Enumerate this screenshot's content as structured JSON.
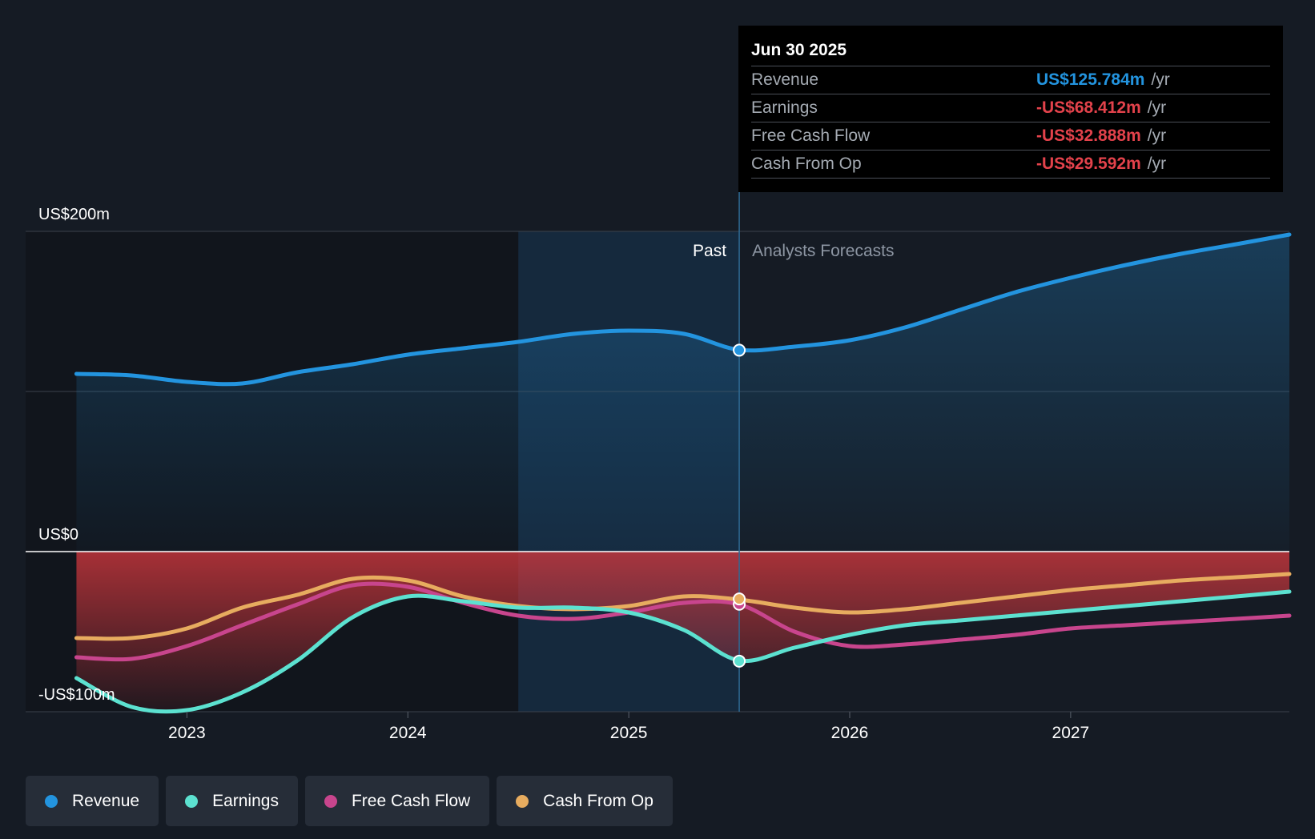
{
  "chart_data": {
    "type": "line",
    "title": "",
    "y_unit": "US$ millions",
    "ylim": [
      -100,
      200
    ],
    "y_ticks": [
      {
        "value": 200,
        "label": "US$200m"
      },
      {
        "value": 0,
        "label": "US$0"
      },
      {
        "value": -100,
        "label": "-US$100m"
      }
    ],
    "xlim": [
      2022.27,
      2027.99
    ],
    "x_ticks": [
      {
        "value": 2023,
        "label": "2023"
      },
      {
        "value": 2024,
        "label": "2024"
      },
      {
        "value": 2025,
        "label": "2025"
      },
      {
        "value": 2026,
        "label": "2026"
      },
      {
        "value": 2027,
        "label": "2027"
      }
    ],
    "past_region_start": 2024.5,
    "divider_x": 2025.5,
    "past_label": "Past",
    "forecast_label": "Analysts Forecasts",
    "series": [
      {
        "name": "Revenue",
        "color": "#2394df",
        "points": [
          [
            2022.5,
            111
          ],
          [
            2022.75,
            110
          ],
          [
            2023.0,
            106
          ],
          [
            2023.25,
            105
          ],
          [
            2023.5,
            112
          ],
          [
            2023.75,
            117
          ],
          [
            2024.0,
            123
          ],
          [
            2024.25,
            127
          ],
          [
            2024.5,
            131
          ],
          [
            2024.75,
            136
          ],
          [
            2025.0,
            138
          ],
          [
            2025.25,
            136
          ],
          [
            2025.5,
            126
          ],
          [
            2025.75,
            128
          ],
          [
            2026.0,
            132
          ],
          [
            2026.25,
            140
          ],
          [
            2026.5,
            151
          ],
          [
            2026.75,
            162
          ],
          [
            2027.0,
            171
          ],
          [
            2027.25,
            179
          ],
          [
            2027.5,
            186
          ],
          [
            2027.75,
            192
          ],
          [
            2027.99,
            198
          ]
        ],
        "marker_value": 125.784
      },
      {
        "name": "Earnings",
        "color": "#5ce1d0",
        "points": [
          [
            2022.5,
            -79
          ],
          [
            2022.75,
            -97
          ],
          [
            2023.0,
            -99
          ],
          [
            2023.25,
            -88
          ],
          [
            2023.5,
            -68
          ],
          [
            2023.75,
            -41
          ],
          [
            2024.0,
            -28
          ],
          [
            2024.25,
            -31
          ],
          [
            2024.5,
            -35
          ],
          [
            2024.75,
            -35
          ],
          [
            2025.0,
            -38
          ],
          [
            2025.25,
            -49
          ],
          [
            2025.5,
            -68
          ],
          [
            2025.75,
            -60
          ],
          [
            2026.0,
            -52
          ],
          [
            2026.25,
            -46
          ],
          [
            2026.5,
            -43
          ],
          [
            2026.75,
            -40
          ],
          [
            2027.0,
            -37
          ],
          [
            2027.25,
            -34
          ],
          [
            2027.5,
            -31
          ],
          [
            2027.75,
            -28
          ],
          [
            2027.99,
            -25
          ]
        ],
        "marker_value": -68.412
      },
      {
        "name": "Free Cash Flow",
        "color": "#c8458d",
        "points": [
          [
            2022.5,
            -66
          ],
          [
            2022.75,
            -67
          ],
          [
            2023.0,
            -59
          ],
          [
            2023.25,
            -46
          ],
          [
            2023.5,
            -33
          ],
          [
            2023.75,
            -21
          ],
          [
            2024.0,
            -22
          ],
          [
            2024.25,
            -32
          ],
          [
            2024.5,
            -40
          ],
          [
            2024.75,
            -42
          ],
          [
            2025.0,
            -38
          ],
          [
            2025.25,
            -32
          ],
          [
            2025.5,
            -33
          ],
          [
            2025.75,
            -50
          ],
          [
            2026.0,
            -59
          ],
          [
            2026.25,
            -58
          ],
          [
            2026.5,
            -55
          ],
          [
            2026.75,
            -52
          ],
          [
            2027.0,
            -48
          ],
          [
            2027.25,
            -46
          ],
          [
            2027.5,
            -44
          ],
          [
            2027.75,
            -42
          ],
          [
            2027.99,
            -40
          ]
        ],
        "marker_value": -32.888
      },
      {
        "name": "Cash From Op",
        "color": "#e7ac5f",
        "points": [
          [
            2022.5,
            -54
          ],
          [
            2022.75,
            -54
          ],
          [
            2023.0,
            -48
          ],
          [
            2023.25,
            -35
          ],
          [
            2023.5,
            -27
          ],
          [
            2023.75,
            -17
          ],
          [
            2024.0,
            -18
          ],
          [
            2024.25,
            -28
          ],
          [
            2024.5,
            -34
          ],
          [
            2024.75,
            -36
          ],
          [
            2025.0,
            -34
          ],
          [
            2025.25,
            -28
          ],
          [
            2025.5,
            -30
          ],
          [
            2025.75,
            -35
          ],
          [
            2026.0,
            -38
          ],
          [
            2026.25,
            -36
          ],
          [
            2026.5,
            -32
          ],
          [
            2026.75,
            -28
          ],
          [
            2027.0,
            -24
          ],
          [
            2027.25,
            -21
          ],
          [
            2027.5,
            -18
          ],
          [
            2027.75,
            -16
          ],
          [
            2027.99,
            -14
          ]
        ],
        "marker_value": -29.592
      }
    ]
  },
  "tooltip": {
    "date": "Jun 30 2025",
    "rows": [
      {
        "label": "Revenue",
        "value": "US$125.784m",
        "unit": "/yr",
        "color": "#2394df"
      },
      {
        "label": "Earnings",
        "value": "-US$68.412m",
        "unit": "/yr",
        "color": "#e3424b"
      },
      {
        "label": "Free Cash Flow",
        "value": "-US$32.888m",
        "unit": "/yr",
        "color": "#e3424b"
      },
      {
        "label": "Cash From Op",
        "value": "-US$29.592m",
        "unit": "/yr",
        "color": "#e3424b"
      }
    ]
  },
  "legend": [
    {
      "label": "Revenue",
      "color": "#2394df"
    },
    {
      "label": "Earnings",
      "color": "#5ce1d0"
    },
    {
      "label": "Free Cash Flow",
      "color": "#c8458d"
    },
    {
      "label": "Cash From Op",
      "color": "#e7ac5f"
    }
  ]
}
